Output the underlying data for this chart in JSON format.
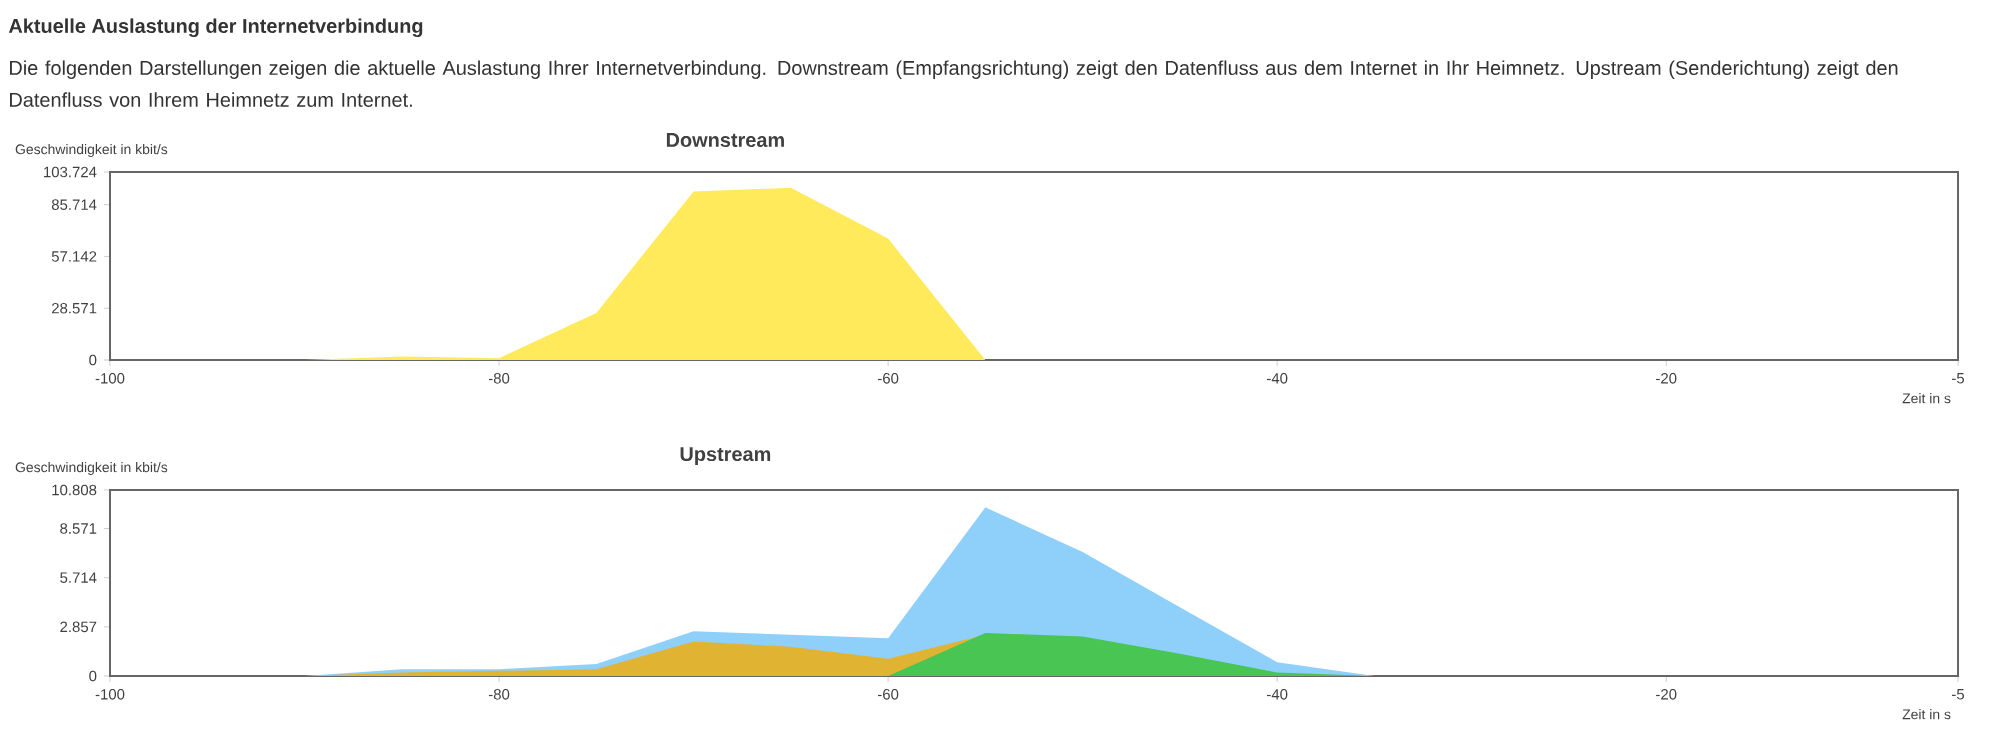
{
  "chart_data": [
    {
      "type": "area",
      "title": "Downstream",
      "xlabel": "Zeit in s",
      "ylabel": "Geschwindigkeit in kbit/s",
      "annotations": [
        "Aktuelle Auslastung der Internetverbindung",
        "Die folgenden Darstellungen zeigen die aktuelle Auslastung Ihrer Internetverbindung. Downstream (Empfangsrichtung) zeigt den Datenfluss aus dem Internet in Ihr Heimnetz. Upstream (Senderichtung) zeigt den Datenfluss von Ihrem Heimnetz zum Internet."
      ],
      "x": [
        -100,
        -95,
        -90,
        -85,
        -80,
        -75,
        -70,
        -65,
        -60,
        -55,
        -50,
        -45,
        -40,
        -35,
        -30,
        -25,
        -20,
        -15,
        -10,
        -5
      ],
      "xlim": [
        -100,
        -5
      ],
      "xticks": [
        -100,
        -80,
        -60,
        -40,
        -20,
        -5
      ],
      "ylim": [
        0,
        103.724
      ],
      "yticks": [
        0,
        28.571,
        57.142,
        85.714,
        103.724
      ],
      "series": [
        {
          "color": "#ffea5c",
          "values": [
            0,
            0,
            0,
            2,
            1,
            26,
            93,
            95,
            67,
            0,
            0,
            0,
            0,
            0,
            0,
            0,
            0,
            0,
            0,
            0
          ]
        }
      ]
    },
    {
      "type": "area",
      "title": "Upstream",
      "xlabel": "Zeit in s",
      "ylabel": "Geschwindigkeit in kbit/s",
      "x": [
        -100,
        -95,
        -90,
        -85,
        -80,
        -75,
        -70,
        -65,
        -60,
        -55,
        -50,
        -45,
        -40,
        -35,
        -30,
        -25,
        -20,
        -15,
        -10,
        -5
      ],
      "xlim": [
        -100,
        -5
      ],
      "xticks": [
        -100,
        -80,
        -60,
        -40,
        -20,
        -5
      ],
      "ylim": [
        0,
        10.808
      ],
      "yticks": [
        0,
        2.857,
        5.714,
        8.571,
        10.808
      ],
      "series": [
        {
          "color": "#8fd0fa",
          "values": [
            0,
            0,
            0,
            0.4,
            0.4,
            0.7,
            2.6,
            2.4,
            2.2,
            9.8,
            7.2,
            4.0,
            0.8,
            0,
            0,
            0,
            0,
            0,
            0,
            0
          ]
        },
        {
          "color": "#e0b432",
          "values": [
            0,
            0,
            0,
            0.2,
            0.3,
            0.4,
            2.0,
            1.7,
            1.0,
            2.4,
            0,
            0,
            0,
            0,
            0,
            0,
            0,
            0,
            0,
            0
          ]
        },
        {
          "color": "#48c553",
          "values": [
            null,
            null,
            null,
            null,
            null,
            null,
            null,
            null,
            0,
            2.5,
            2.3,
            1.3,
            0.2,
            0,
            null,
            null,
            null,
            null,
            null,
            null
          ]
        }
      ]
    }
  ]
}
